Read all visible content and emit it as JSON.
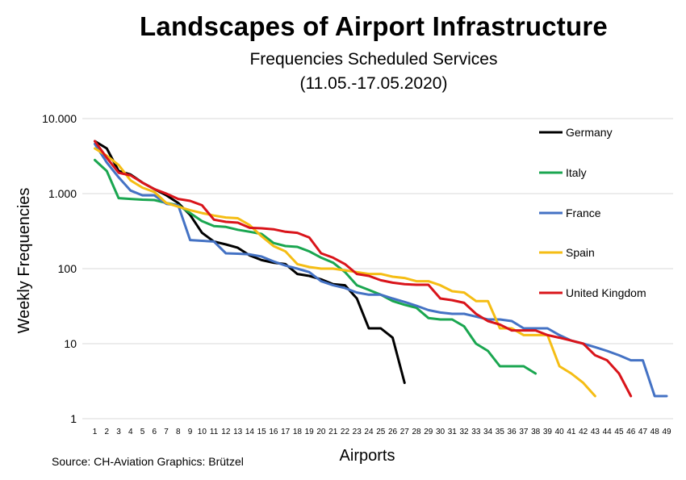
{
  "header": {
    "title": "Landscapes of Airport Infrastructure",
    "subtitle": "Frequencies Scheduled Services",
    "dates": "(11.05.-17.05.2020)"
  },
  "footer": {
    "source": "Source: CH-Aviation  Graphics: Brützel"
  },
  "chart_data": {
    "type": "line",
    "title": "Landscapes of Airport Infrastructure",
    "subtitle": "Frequencies Scheduled Services (11.05.-17.05.2020)",
    "xlabel": "Airports",
    "ylabel": "Weekly Frequencies",
    "y_scale": "log",
    "ylim": [
      1,
      10000
    ],
    "y_ticks": [
      1,
      10,
      100,
      1000,
      10000
    ],
    "y_tick_labels": [
      "1",
      "10",
      "100",
      "1.000",
      "10.000"
    ],
    "x_ticks": [
      1,
      2,
      3,
      4,
      5,
      6,
      7,
      8,
      9,
      10,
      11,
      12,
      13,
      14,
      15,
      16,
      17,
      18,
      19,
      20,
      21,
      22,
      23,
      24,
      25,
      26,
      27,
      28,
      29,
      30,
      31,
      32,
      33,
      34,
      35,
      36,
      37,
      38,
      39,
      40,
      41,
      42,
      43,
      44,
      45,
      46,
      47,
      48,
      49
    ],
    "grid": "horizontal",
    "legend_position": "right",
    "series": [
      {
        "name": "Germany",
        "color": "#000000",
        "values": [
          5000,
          4000,
          2000,
          1800,
          1400,
          1150,
          950,
          750,
          520,
          300,
          230,
          210,
          190,
          150,
          130,
          120,
          115,
          85,
          80,
          72,
          62,
          60,
          40,
          16,
          16,
          12,
          3
        ]
      },
      {
        "name": "Italy",
        "color": "#1aa650",
        "values": [
          2800,
          2000,
          870,
          850,
          830,
          820,
          750,
          700,
          550,
          430,
          370,
          360,
          330,
          310,
          290,
          220,
          200,
          195,
          170,
          140,
          120,
          90,
          60,
          52,
          45,
          37,
          33,
          30,
          22,
          21,
          21,
          17,
          10,
          8,
          5,
          5,
          5,
          4
        ]
      },
      {
        "name": "France",
        "color": "#4472c4",
        "values": [
          4600,
          2600,
          1650,
          1100,
          950,
          950,
          730,
          700,
          240,
          235,
          230,
          160,
          158,
          155,
          145,
          125,
          110,
          100,
          90,
          68,
          60,
          55,
          48,
          45,
          45,
          40,
          36,
          32,
          28,
          26,
          25,
          25,
          23,
          21,
          21,
          20,
          16,
          16,
          16,
          13,
          11,
          10,
          9,
          8,
          7,
          6,
          6,
          2,
          2
        ]
      },
      {
        "name": "Spain",
        "color": "#f5bd14",
        "values": [
          4000,
          3200,
          2400,
          1500,
          1200,
          1050,
          750,
          670,
          600,
          550,
          510,
          480,
          470,
          380,
          270,
          200,
          170,
          115,
          105,
          100,
          100,
          95,
          90,
          85,
          85,
          78,
          75,
          68,
          68,
          60,
          50,
          48,
          37,
          37,
          16,
          16,
          13,
          13,
          13,
          5,
          4,
          3,
          2
        ]
      },
      {
        "name": "United Kingdom",
        "color": "#d9141a",
        "values": [
          5000,
          3000,
          1900,
          1750,
          1400,
          1150,
          1000,
          850,
          800,
          700,
          450,
          420,
          410,
          350,
          345,
          335,
          310,
          300,
          260,
          160,
          140,
          115,
          85,
          80,
          70,
          65,
          62,
          61,
          61,
          40,
          38,
          35,
          25,
          20,
          18,
          15,
          15,
          15,
          13,
          12,
          11,
          10,
          7,
          6,
          4,
          2
        ]
      }
    ]
  }
}
